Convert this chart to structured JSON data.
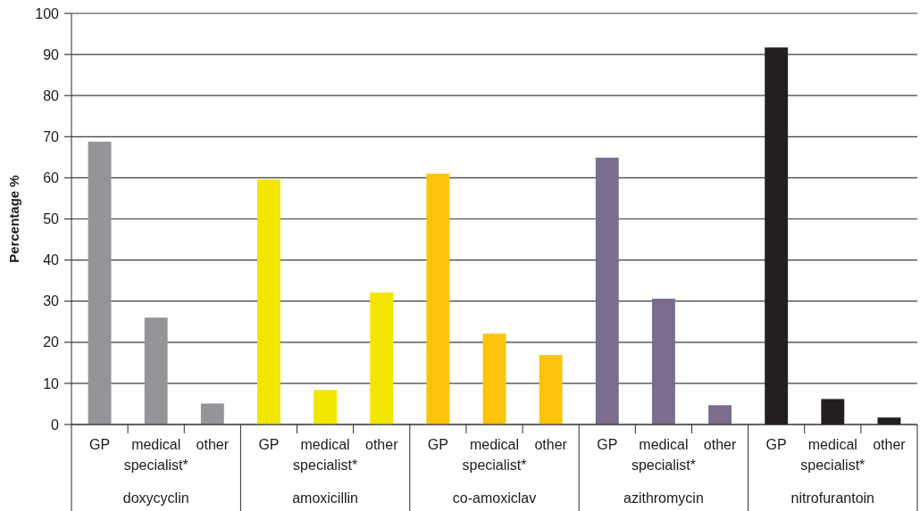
{
  "chart_data": {
    "type": "bar",
    "ylabel": "Percentage %",
    "categories": [
      "GP",
      "medical specialist*",
      "other",
      "GP",
      "medical specialist*",
      "other",
      "GP",
      "medical specialist*",
      "other",
      "GP",
      "medical specialist*",
      "other",
      "GP",
      "medical specialist*",
      "other"
    ],
    "values": [
      68.8,
      26.0,
      5.1,
      59.6,
      8.4,
      32.1,
      61.0,
      22.1,
      16.9,
      64.9,
      30.6,
      4.7,
      91.7,
      6.2,
      1.7
    ],
    "colors": [
      "#939598",
      "#939598",
      "#939598",
      "#f2e500",
      "#f2e500",
      "#f2e500",
      "#fcc30b",
      "#fcc30b",
      "#fcc30b",
      "#7a6d8d",
      "#7a6d8d",
      "#7a6d8d",
      "#231f20",
      "#231f20",
      "#231f20"
    ],
    "ylim": [
      0,
      100
    ],
    "yticks": [
      0,
      10,
      20,
      30,
      40,
      50,
      60,
      70,
      80,
      90,
      100
    ],
    "grid": true,
    "annotations": [
      "doxycyclin",
      "amoxicillin",
      "co-amoxiclav",
      "azithromycin",
      "nitrofurantoin"
    ]
  }
}
